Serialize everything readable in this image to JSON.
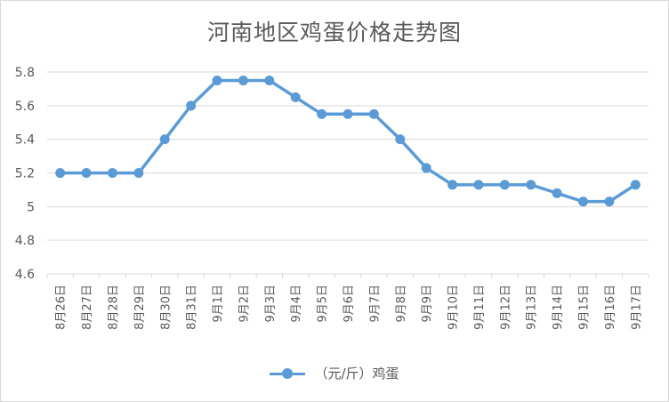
{
  "chart_data": {
    "type": "line",
    "title": "河南地区鸡蛋价格走势图",
    "categories": [
      "8月26日",
      "8月27日",
      "8月28日",
      "8月29日",
      "8月30日",
      "8月31日",
      "9月1日",
      "9月2日",
      "9月3日",
      "9月4日",
      "9月5日",
      "9月6日",
      "9月7日",
      "9月8日",
      "9月9日",
      "9月10日",
      "9月11日",
      "9月12日",
      "9月13日",
      "9月14日",
      "9月15日",
      "9月16日",
      "9月17日"
    ],
    "series": [
      {
        "name": "（元/斤）鸡蛋",
        "values": [
          5.2,
          5.2,
          5.2,
          5.2,
          5.4,
          5.6,
          5.75,
          5.75,
          5.75,
          5.65,
          5.55,
          5.55,
          5.55,
          5.4,
          5.23,
          5.13,
          5.13,
          5.13,
          5.13,
          5.08,
          5.03,
          5.03,
          5.13
        ]
      }
    ],
    "y_ticks": [
      "4.6",
      "4.8",
      "5",
      "5.2",
      "5.4",
      "5.6",
      "5.8"
    ],
    "ylim": [
      4.6,
      5.8
    ],
    "grid": "horizontal",
    "legend": "bottom",
    "colors": {
      "series": "#5b9bd5",
      "grid": "#d9d9d9",
      "text": "#595959"
    }
  }
}
